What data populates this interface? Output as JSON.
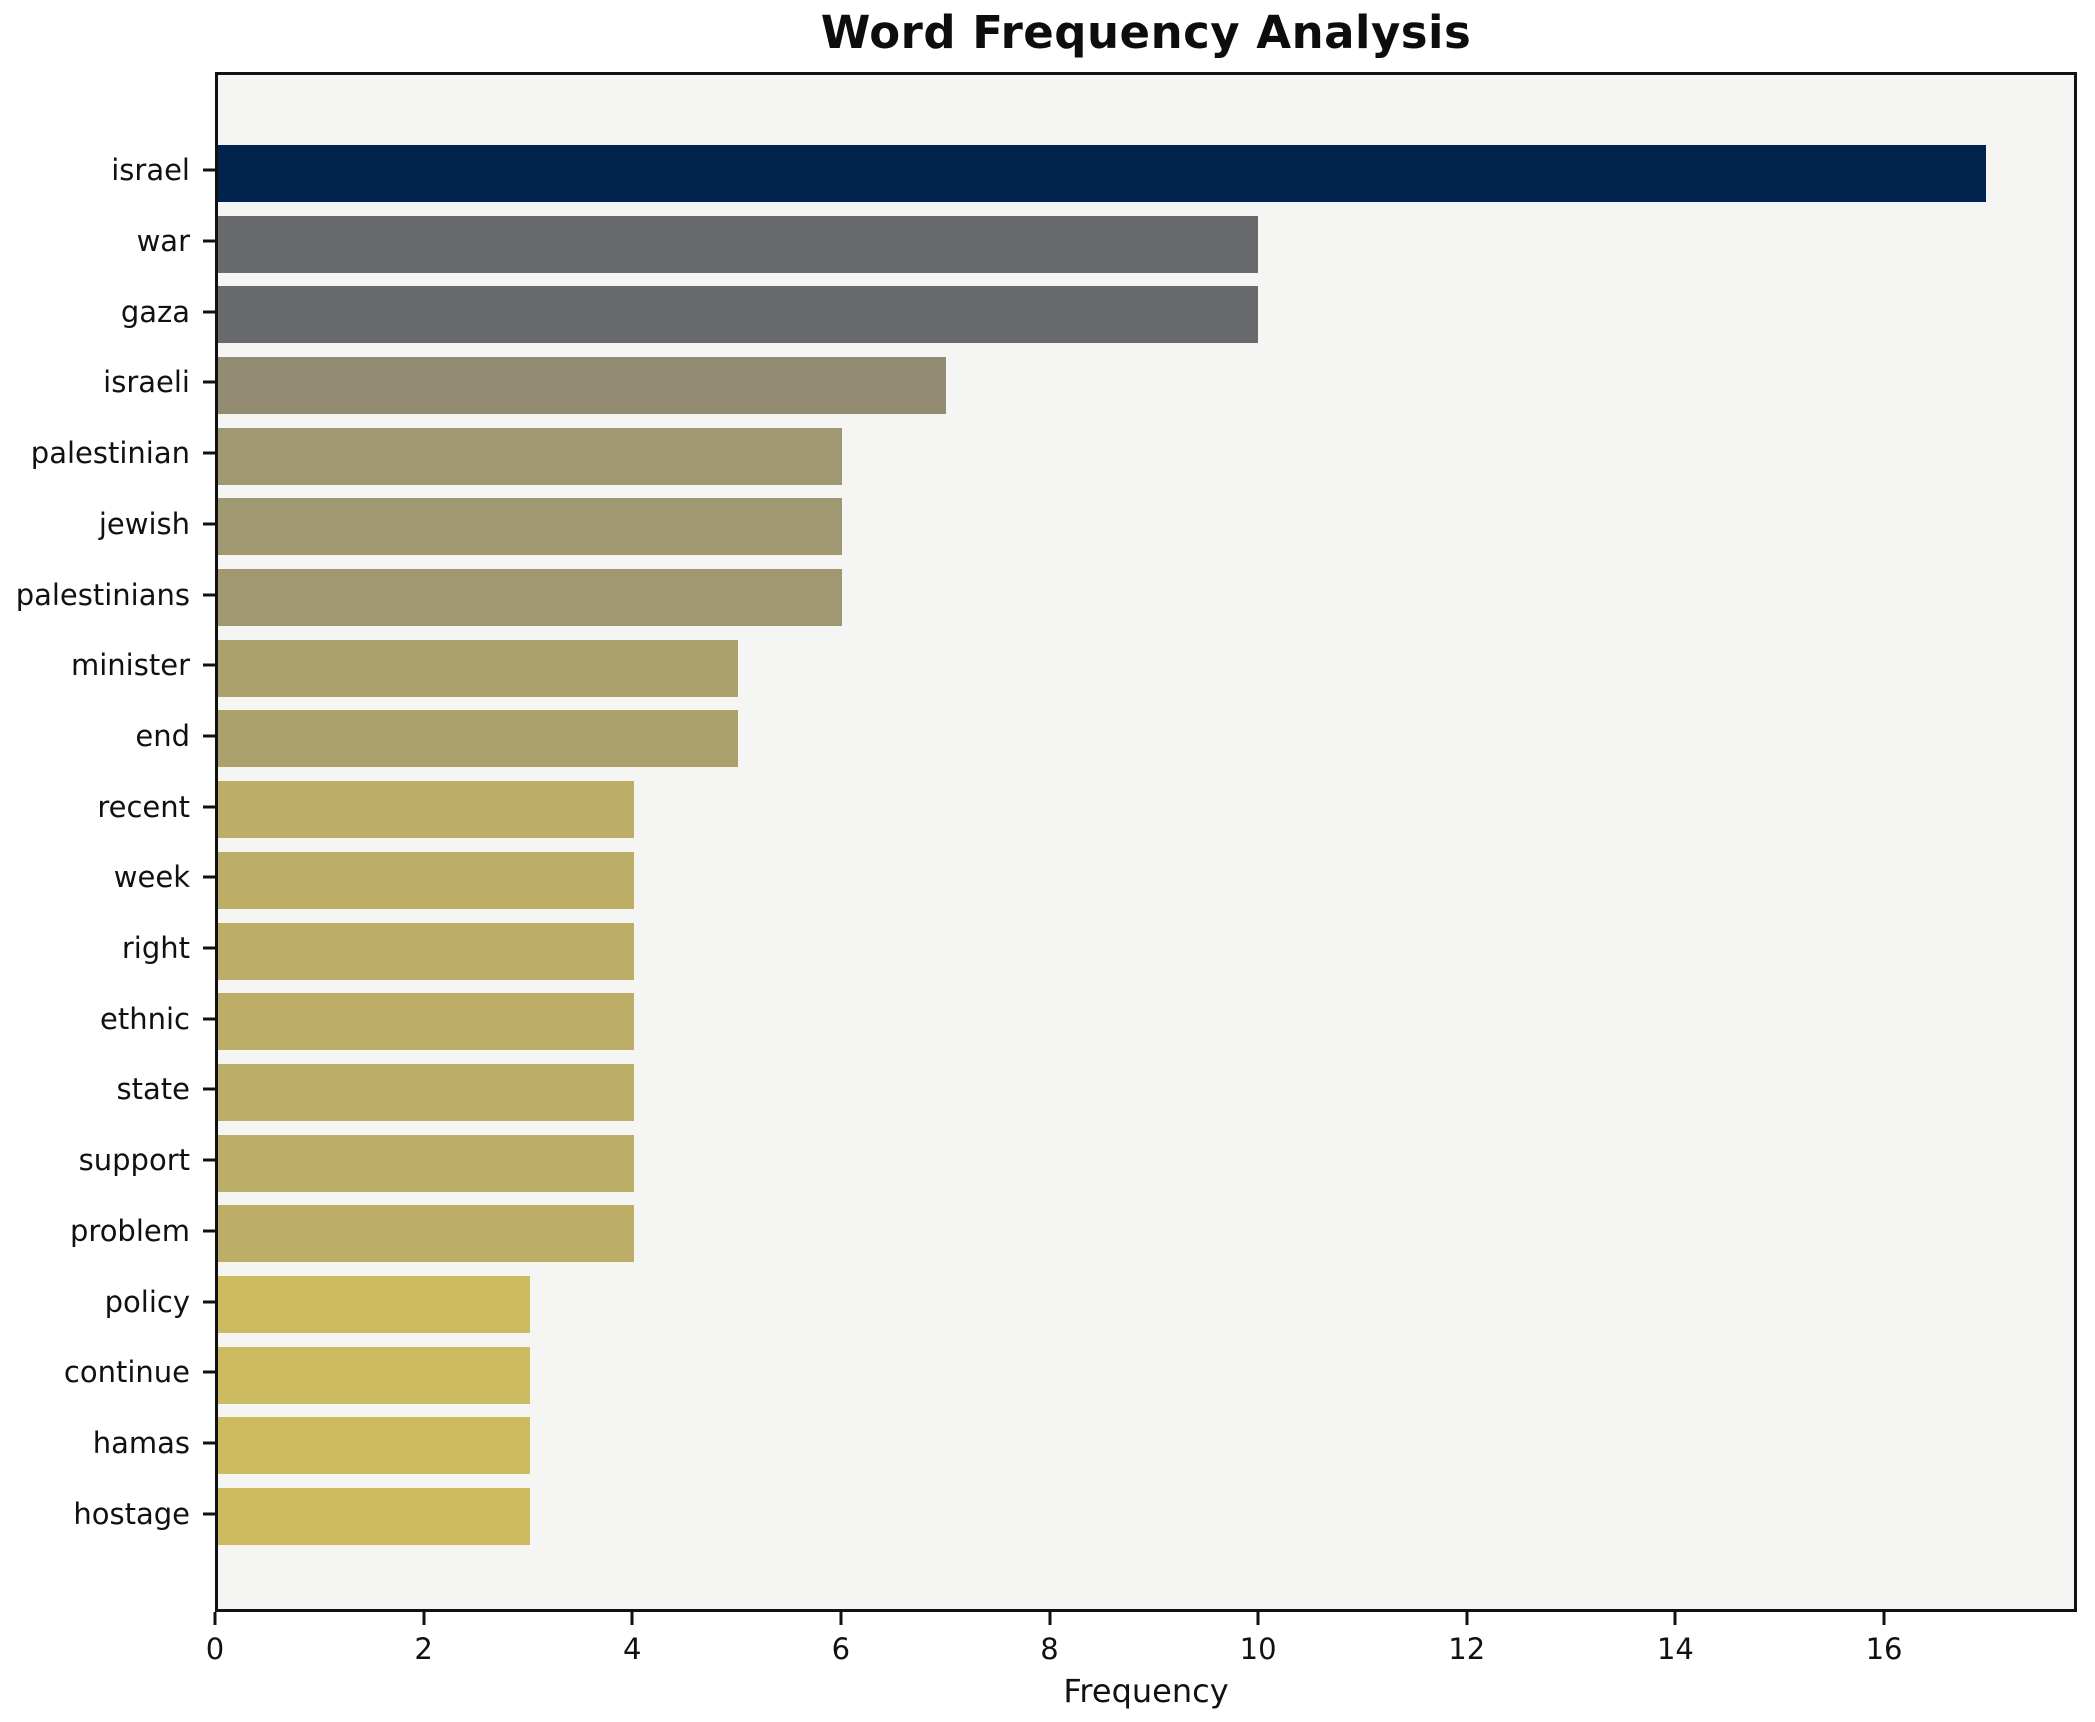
{
  "chart_data": {
    "type": "bar",
    "orientation": "horizontal",
    "title": "Word Frequency Analysis",
    "xlabel": "Frequency",
    "ylabel": "",
    "categories": [
      "israel",
      "war",
      "gaza",
      "israeli",
      "palestinian",
      "jewish",
      "palestinians",
      "minister",
      "end",
      "recent",
      "week",
      "right",
      "ethnic",
      "state",
      "support",
      "problem",
      "policy",
      "continue",
      "hamas",
      "hostage"
    ],
    "values": [
      17,
      10,
      10,
      7,
      6,
      6,
      6,
      5,
      5,
      4,
      4,
      4,
      4,
      4,
      4,
      4,
      3,
      3,
      3,
      3
    ],
    "bar_colors": [
      "#02234e",
      "#696a6e",
      "#696a6e",
      "#938c73",
      "#a09870",
      "#a09870",
      "#a09870",
      "#aca06d",
      "#aca06d",
      "#bdae67",
      "#bdae67",
      "#bdae67",
      "#bdae67",
      "#bdae67",
      "#bdae67",
      "#bdae67",
      "#cdbb62",
      "#cdbb62",
      "#cdbb62",
      "#cdbb62"
    ],
    "xticks": [
      0,
      2,
      4,
      6,
      8,
      10,
      12,
      14,
      16
    ],
    "xlim": [
      0,
      17.85
    ],
    "grid": false,
    "legend": null,
    "plot_background": "#f5f5f3",
    "figure_background": "#ffffff",
    "spine_color": "#111111"
  }
}
